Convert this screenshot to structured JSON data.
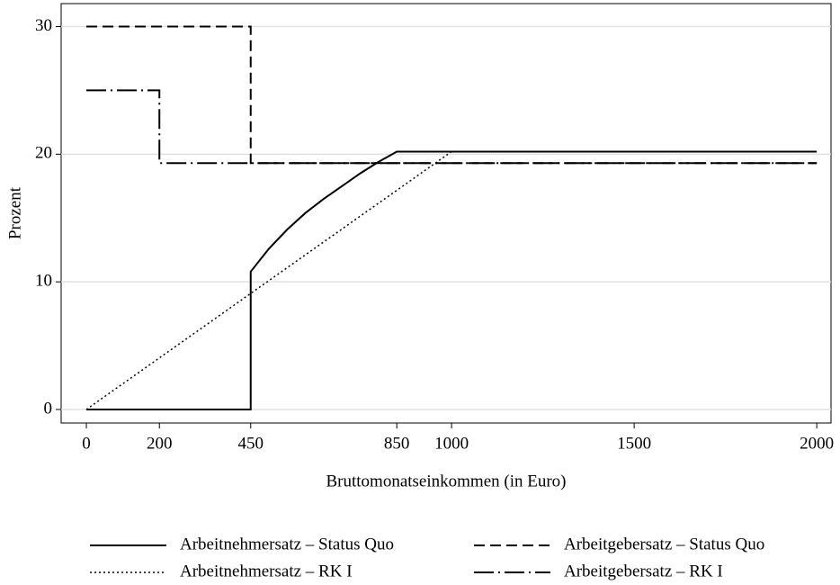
{
  "chart_data": {
    "type": "line",
    "xlabel": "Bruttomonatseinkommen (in Euro)",
    "ylabel": "Prozent",
    "xlim": [
      -69,
      2039
    ],
    "ylim": [
      -1.06,
      31.8
    ],
    "xticks": [
      0,
      200,
      450,
      850,
      1000,
      1500,
      2000
    ],
    "yticks": [
      0,
      10,
      20,
      30
    ],
    "grid": true,
    "legend": "bottom",
    "series": [
      {
        "name": "Arbeitnehmersatz – Status Quo",
        "color": "#000000",
        "style": "solid",
        "x": [
          0,
          450,
          450,
          500,
          550,
          600,
          650,
          700,
          750,
          800,
          850,
          2000
        ],
        "values": [
          0,
          0,
          10.8,
          12.6,
          14.1,
          15.4,
          16.5,
          17.5,
          18.5,
          19.4,
          20.2,
          20.2
        ]
      },
      {
        "name": "Arbeitgebersatz – Status Quo",
        "color": "#000000",
        "style": "dashed",
        "x": [
          0,
          450,
          450,
          2000
        ],
        "values": [
          30,
          30,
          19.3,
          19.3
        ]
      },
      {
        "name": "Arbeitnehmersatz – RK I",
        "color": "#000000",
        "style": "dotted",
        "x": [
          0,
          1000,
          2000
        ],
        "values": [
          0,
          20.2,
          20.2
        ]
      },
      {
        "name": "Arbeitgebersatz  – RK I",
        "color": "#000000",
        "style": "dashdot",
        "x": [
          0,
          200,
          200,
          2000
        ],
        "values": [
          25,
          25,
          19.3,
          19.3
        ]
      }
    ]
  }
}
